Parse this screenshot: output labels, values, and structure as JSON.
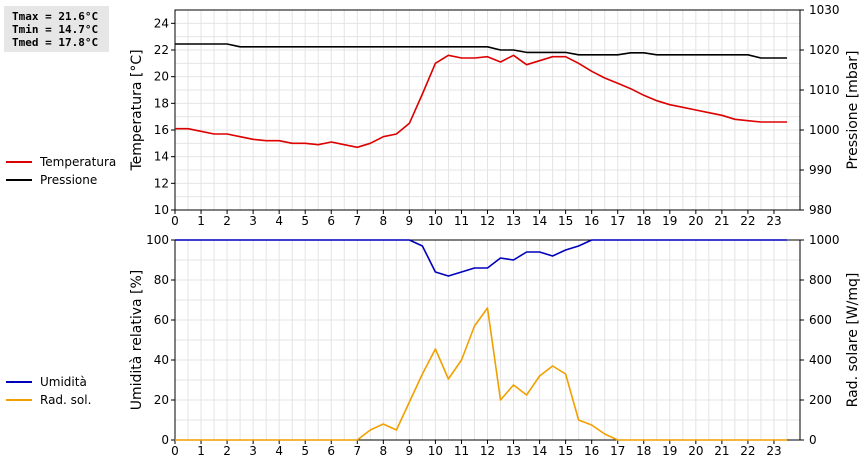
{
  "stats": [
    "Tmax = 21.6°C",
    "Tmin = 14.7°C",
    "Tmed = 17.8°C"
  ],
  "chart_data": [
    {
      "type": "line",
      "x_ticks": [
        0,
        1,
        2,
        3,
        4,
        5,
        6,
        7,
        8,
        9,
        10,
        11,
        12,
        13,
        14,
        15,
        16,
        17,
        18,
        19,
        20,
        21,
        22,
        23
      ],
      "xlim": [
        0,
        24
      ],
      "ylabel_left": "Temperatura [°C]",
      "ylabel_right": "Pressione [mbar]",
      "ylim_left": [
        10,
        25
      ],
      "yticks_left": [
        10,
        12,
        14,
        16,
        18,
        20,
        22,
        24
      ],
      "ylim_right": [
        980,
        1030
      ],
      "yticks_right": [
        980,
        990,
        1000,
        1010,
        1020,
        1030
      ],
      "grid": true,
      "legend_position": "left",
      "series": [
        {
          "name": "Temperatura",
          "color": "#dd0000",
          "axis": "left",
          "x": [
            0,
            0.5,
            1,
            1.5,
            2,
            2.5,
            3,
            3.5,
            4,
            4.5,
            5,
            5.5,
            6,
            6.5,
            7,
            7.5,
            8,
            8.5,
            9,
            9.5,
            10,
            10.5,
            11,
            11.5,
            12,
            12.5,
            13,
            13.5,
            14,
            14.5,
            15,
            15.5,
            16,
            16.5,
            17,
            17.5,
            18,
            18.5,
            19,
            19.5,
            20,
            20.5,
            21,
            21.5,
            22,
            22.5,
            23,
            23.5
          ],
          "values": [
            16.1,
            16.1,
            15.9,
            15.7,
            15.7,
            15.5,
            15.3,
            15.2,
            15.2,
            15.0,
            15.0,
            14.9,
            15.1,
            14.9,
            14.7,
            15.0,
            15.5,
            15.7,
            16.5,
            18.7,
            21.0,
            21.6,
            21.4,
            21.4,
            21.5,
            21.1,
            21.6,
            20.9,
            21.2,
            21.5,
            21.5,
            21.0,
            20.4,
            19.9,
            19.5,
            19.1,
            18.6,
            18.2,
            17.9,
            17.7,
            17.5,
            17.3,
            17.1,
            16.8,
            16.7,
            16.6,
            16.6,
            16.6
          ]
        },
        {
          "name": "Pressione",
          "color": "#000000",
          "axis": "right",
          "x": [
            0,
            2,
            2.5,
            12,
            12.5,
            13,
            13.5,
            15,
            15.5,
            16,
            17,
            17.5,
            18,
            18.5,
            19,
            22,
            22.5,
            23.5
          ],
          "values": [
            1021.5,
            1021.5,
            1020.8,
            1020.8,
            1020.0,
            1020.0,
            1019.4,
            1019.4,
            1018.8,
            1018.8,
            1018.8,
            1019.3,
            1019.3,
            1018.8,
            1018.8,
            1018.8,
            1018.0,
            1018.0
          ]
        }
      ]
    },
    {
      "type": "line",
      "x_ticks": [
        0,
        1,
        2,
        3,
        4,
        5,
        6,
        7,
        8,
        9,
        10,
        11,
        12,
        13,
        14,
        15,
        16,
        17,
        18,
        19,
        20,
        21,
        22,
        23
      ],
      "xlim": [
        0,
        24
      ],
      "ylabel_left": "Umidità relativa [%]",
      "ylabel_right": "Rad. solare [W/mq]",
      "ylim_left": [
        0,
        100
      ],
      "yticks_left": [
        0,
        20,
        40,
        60,
        80,
        100
      ],
      "ylim_right": [
        0,
        1000
      ],
      "yticks_right": [
        0,
        200,
        400,
        600,
        800,
        1000
      ],
      "grid": true,
      "legend_position": "left",
      "series": [
        {
          "name": "Umidità",
          "color": "#0000bb",
          "axis": "left",
          "x": [
            0,
            9,
            9.5,
            10,
            10.5,
            11,
            11.5,
            12,
            12.5,
            13,
            13.5,
            14,
            14.5,
            15,
            15.5,
            16,
            23.5
          ],
          "values": [
            100,
            100,
            97,
            84,
            82,
            84,
            86,
            86,
            91,
            90,
            94,
            94,
            92,
            95,
            97,
            100,
            100
          ]
        },
        {
          "name": "Rad. sol.",
          "color": "#f0a000",
          "axis": "right",
          "x": [
            0,
            7,
            7.5,
            8,
            8.5,
            9,
            9.5,
            10,
            10.5,
            11,
            11.5,
            12,
            12.5,
            13,
            13.5,
            14,
            14.5,
            15,
            15.5,
            16,
            16.5,
            17,
            23.5
          ],
          "values": [
            0,
            0,
            50,
            80,
            50,
            190,
            330,
            455,
            305,
            400,
            570,
            660,
            200,
            275,
            225,
            320,
            370,
            330,
            100,
            75,
            30,
            0,
            0
          ]
        }
      ]
    }
  ]
}
